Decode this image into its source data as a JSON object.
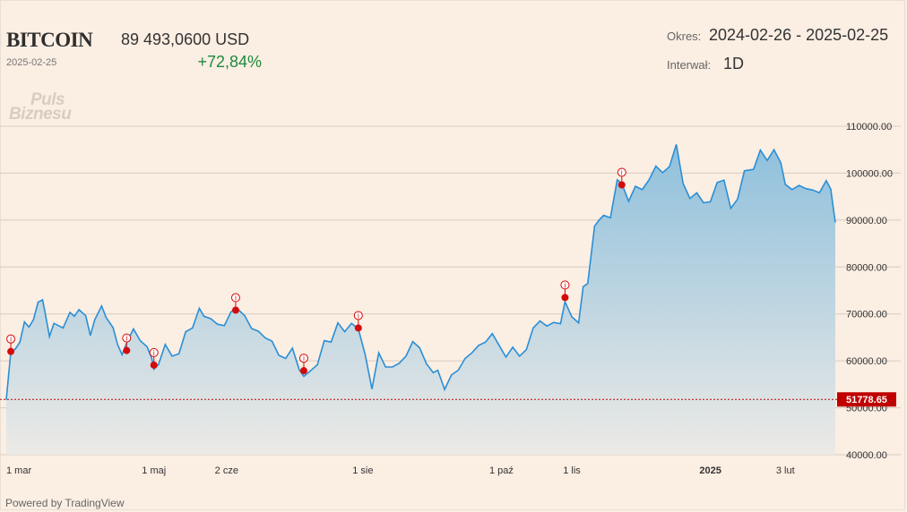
{
  "header": {
    "title": "BITCOIN",
    "date": "2025-02-25",
    "price": "89 493,0600 USD",
    "change": "+72,84%",
    "period_label": "Okres:",
    "period_value": "2024-02-26 - 2025-02-25",
    "interval_label": "Interwał:",
    "interval_value": "1D"
  },
  "logo": {
    "line1": "Puls",
    "line2": "Biznesu"
  },
  "footer": {
    "powered": "Powered by TradingView"
  },
  "colors": {
    "line": "#2a8fd6",
    "area_top": "#8fc0dc",
    "area_bottom": "#eceae6",
    "marker": "#d40b0b",
    "baseline": "#c00000",
    "change_positive": "#1e8a3c"
  },
  "chart_data": {
    "type": "area",
    "title": "",
    "xlabel": "",
    "ylabel": "",
    "ylim": [
      40000,
      110000
    ],
    "yticks": [
      "110000.00",
      "100000.00",
      "90000.00",
      "80000.00",
      "70000.00",
      "60000.00",
      "50000.00",
      "40000.00"
    ],
    "grid": true,
    "xticks": [
      {
        "label": "1 mar",
        "date": "2024-03-01"
      },
      {
        "label": "1 maj",
        "date": "2024-05-01"
      },
      {
        "label": "2 cze",
        "date": "2024-06-02"
      },
      {
        "label": "1 sie",
        "date": "2024-08-01"
      },
      {
        "label": "1 paź",
        "date": "2024-10-01"
      },
      {
        "label": "1 lis",
        "date": "2024-11-01"
      },
      {
        "label": "2025",
        "date": "2025-01-01",
        "bold": true
      },
      {
        "label": "3 lut",
        "date": "2025-02-03"
      }
    ],
    "baseline": {
      "value": 51778.65,
      "label": "51778.65"
    },
    "series": [
      {
        "x": [
          "2024-02-26",
          "2024-02-28",
          "2024-03-01",
          "2024-03-03",
          "2024-03-05",
          "2024-03-07",
          "2024-03-09",
          "2024-03-11",
          "2024-03-13",
          "2024-03-14",
          "2024-03-16",
          "2024-03-18",
          "2024-03-20",
          "2024-03-22",
          "2024-03-25",
          "2024-03-27",
          "2024-03-29",
          "2024-04-01",
          "2024-04-03",
          "2024-04-05",
          "2024-04-08",
          "2024-04-10",
          "2024-04-13",
          "2024-04-15",
          "2024-04-17",
          "2024-04-19",
          "2024-04-22",
          "2024-04-25",
          "2024-04-28",
          "2024-04-30",
          "2024-05-01",
          "2024-05-03",
          "2024-05-06",
          "2024-05-09",
          "2024-05-12",
          "2024-05-15",
          "2024-05-18",
          "2024-05-21",
          "2024-05-23",
          "2024-05-26",
          "2024-05-29",
          "2024-06-01",
          "2024-06-04",
          "2024-06-07",
          "2024-06-10",
          "2024-06-13",
          "2024-06-16",
          "2024-06-19",
          "2024-06-22",
          "2024-06-25",
          "2024-06-28",
          "2024-07-01",
          "2024-07-04",
          "2024-07-06",
          "2024-07-09",
          "2024-07-12",
          "2024-07-15",
          "2024-07-18",
          "2024-07-21",
          "2024-07-24",
          "2024-07-27",
          "2024-07-30",
          "2024-08-02",
          "2024-08-05",
          "2024-08-08",
          "2024-08-11",
          "2024-08-14",
          "2024-08-17",
          "2024-08-20",
          "2024-08-23",
          "2024-08-26",
          "2024-08-29",
          "2024-09-01",
          "2024-09-03",
          "2024-09-06",
          "2024-09-09",
          "2024-09-12",
          "2024-09-15",
          "2024-09-18",
          "2024-09-21",
          "2024-09-24",
          "2024-09-27",
          "2024-09-30",
          "2024-10-03",
          "2024-10-06",
          "2024-10-09",
          "2024-10-12",
          "2024-10-15",
          "2024-10-18",
          "2024-10-21",
          "2024-10-24",
          "2024-10-27",
          "2024-10-29",
          "2024-11-01",
          "2024-11-04",
          "2024-11-06",
          "2024-11-08",
          "2024-11-11",
          "2024-11-13",
          "2024-11-15",
          "2024-11-18",
          "2024-11-21",
          "2024-11-23",
          "2024-11-26",
          "2024-11-29",
          "2024-12-02",
          "2024-12-05",
          "2024-12-08",
          "2024-12-11",
          "2024-12-14",
          "2024-12-17",
          "2024-12-20",
          "2024-12-23",
          "2024-12-26",
          "2024-12-29",
          "2025-01-01",
          "2025-01-04",
          "2025-01-07",
          "2025-01-10",
          "2025-01-13",
          "2025-01-16",
          "2025-01-20",
          "2025-01-23",
          "2025-01-26",
          "2025-01-29",
          "2025-02-01",
          "2025-02-03",
          "2025-02-06",
          "2025-02-09",
          "2025-02-12",
          "2025-02-15",
          "2025-02-18",
          "2025-02-21",
          "2025-02-23",
          "2025-02-25"
        ],
        "values": [
          51700,
          62000,
          62500,
          64000,
          68300,
          67200,
          68800,
          72500,
          73000,
          70500,
          65200,
          68000,
          67500,
          67000,
          70300,
          69500,
          70900,
          69600,
          65400,
          68800,
          71700,
          69200,
          67100,
          63500,
          61300,
          63800,
          66800,
          64300,
          63000,
          60600,
          58200,
          59200,
          63500,
          61000,
          61500,
          66200,
          67000,
          71200,
          69500,
          69000,
          67800,
          67500,
          70500,
          71000,
          69600,
          66900,
          66300,
          64900,
          64200,
          61200,
          60500,
          62700,
          58100,
          56700,
          57900,
          59200,
          64300,
          64000,
          68100,
          66200,
          68000,
          66800,
          61400,
          54000,
          61700,
          58700,
          58700,
          59500,
          61000,
          64100,
          62800,
          59400,
          57500,
          58000,
          53900,
          57000,
          58000,
          60500,
          61700,
          63300,
          64000,
          65800,
          63300,
          60800,
          62900,
          61000,
          62400,
          67000,
          68500,
          67400,
          68200,
          67900,
          72600,
          69400,
          68100,
          75800,
          76500,
          88700,
          90000,
          91000,
          90500,
          98600,
          97800,
          94000,
          97200,
          96500,
          98600,
          101500,
          100100,
          101400,
          106100,
          97800,
          94600,
          95800,
          93700,
          93900,
          98000,
          98500,
          92500,
          94500,
          100500,
          100800,
          104900,
          102700,
          105000,
          102200,
          97600,
          96500,
          97400,
          96700,
          96400,
          95800,
          98400,
          96600,
          89493
        ]
      }
    ],
    "markers": [
      {
        "date": "2024-02-28",
        "value": 62000
      },
      {
        "date": "2024-04-19",
        "value": 62200
      },
      {
        "date": "2024-05-01",
        "value": 59100
      },
      {
        "date": "2024-06-06",
        "value": 70800
      },
      {
        "date": "2024-07-06",
        "value": 57900
      },
      {
        "date": "2024-07-30",
        "value": 67000
      },
      {
        "date": "2024-10-29",
        "value": 73500
      },
      {
        "date": "2024-11-23",
        "value": 97500
      }
    ]
  }
}
